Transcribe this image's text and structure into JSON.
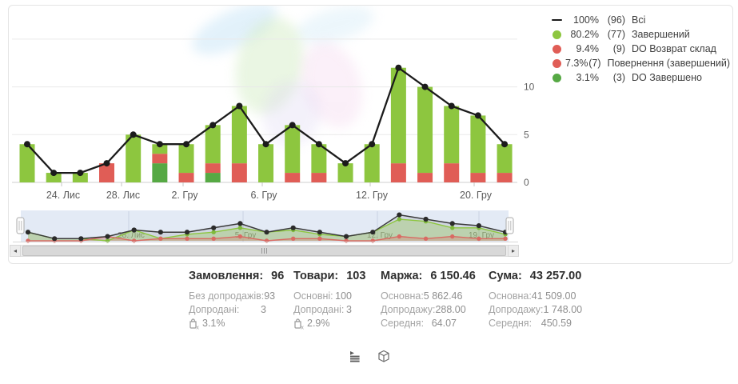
{
  "colors": {
    "bar_completed": "#8dc63f",
    "bar_return": "#e05d56",
    "bar_do_completed": "#56a944",
    "line_total": "#1b1b1b",
    "grid": "#e9e9e9",
    "axis_text": "#616161",
    "nav_selection": "#ccd8ec"
  },
  "legend": {
    "items": [
      {
        "marker": "line-dash",
        "color": "#1b1b1b",
        "percent": "100%",
        "count": "(96)",
        "label": "Всі"
      },
      {
        "marker": "dot",
        "color": "#8dc63f",
        "percent": "80.2%",
        "count": "(77)",
        "label": "Завершений"
      },
      {
        "marker": "dot",
        "color": "#e05d56",
        "percent": "9.4%",
        "count": "(9)",
        "label": "DO Возврат склад"
      },
      {
        "marker": "dot",
        "color": "#e05d56",
        "percent": "7.3%",
        "count": "(7)",
        "label": "Повернення (завершений)"
      },
      {
        "marker": "dot",
        "color": "#56a944",
        "percent": "3.1%",
        "count": "(3)",
        "label": "DO Завершено"
      }
    ]
  },
  "chart_data": {
    "type": "bar",
    "subtype": "stacked-bars-with-total-line",
    "x_tick_labels": [
      "24. Лис",
      "28. Лис",
      "2. Гру",
      "6. Гру",
      "12. Гру",
      "20. Гру"
    ],
    "y_ticks": [
      "0",
      "5",
      "10"
    ],
    "ylim": [
      0,
      15
    ],
    "grid": true,
    "legend_position": "top-right",
    "series": [
      {
        "name": "Завершений",
        "color": "#8dc63f",
        "values": [
          4,
          1,
          1,
          0,
          5,
          1,
          3,
          4,
          6,
          4,
          5,
          3,
          2,
          4,
          10,
          9,
          6,
          6,
          3
        ]
      },
      {
        "name": "Повернення / DO Возврат склад",
        "color": "#e05d56",
        "values": [
          0,
          0,
          0,
          2,
          0,
          1,
          1,
          1,
          2,
          0,
          1,
          1,
          0,
          0,
          2,
          1,
          2,
          1,
          1
        ]
      },
      {
        "name": "DO Завершено",
        "color": "#56a944",
        "values": [
          0,
          0,
          0,
          0,
          0,
          2,
          0,
          1,
          0,
          0,
          0,
          0,
          0,
          0,
          0,
          0,
          0,
          0,
          0
        ]
      }
    ],
    "stack_order_bottom_to_top": [
      "DO Завершено",
      "Повернення / DO Возврат склад",
      "Завершений"
    ],
    "line": {
      "name": "Всі",
      "color": "#1b1b1b",
      "values": [
        4,
        1,
        1,
        2,
        5,
        4,
        4,
        6,
        8,
        4,
        6,
        4,
        2,
        4,
        12,
        10,
        8,
        7,
        4
      ]
    },
    "totals": {
      "all": 96,
      "completed": 77,
      "do_return": 9,
      "return_completed": 7,
      "do_completed": 3
    }
  },
  "navigator": {
    "x_tick_labels": [
      "28. Лис",
      "5. Гру",
      "12. Гру",
      "19. Гру"
    ]
  },
  "stats": {
    "columns": [
      {
        "title": "Замовлення:",
        "value": "96",
        "rows": [
          {
            "label": "Без допродажів:",
            "value": "93"
          },
          {
            "label": "Допродані:",
            "value": "3"
          },
          {
            "label": "",
            "value": "3.1%",
            "icon": "upsell-bag-icon"
          }
        ]
      },
      {
        "title": "Товари:",
        "value": "103",
        "rows": [
          {
            "label": "Основні:",
            "value": "100"
          },
          {
            "label": "Допродані:",
            "value": "3"
          },
          {
            "label": "",
            "value": "2.9%",
            "icon": "upsell-bag-icon"
          }
        ]
      },
      {
        "title": "Маржа:",
        "value": "6 150.46",
        "rows": [
          {
            "label": "Основна:",
            "value": "5 862.46"
          },
          {
            "label": "Допродажу:",
            "value": "288.00"
          },
          {
            "label": "Середня:",
            "value": "64.07"
          }
        ]
      },
      {
        "title": "Сума:",
        "value": "43 257.00",
        "rows": [
          {
            "label": "Основна:",
            "value": "41 509.00"
          },
          {
            "label": "Допродажу:",
            "value": "1 748.00"
          },
          {
            "label": "Середня:",
            "value": "450.59"
          }
        ]
      }
    ]
  }
}
